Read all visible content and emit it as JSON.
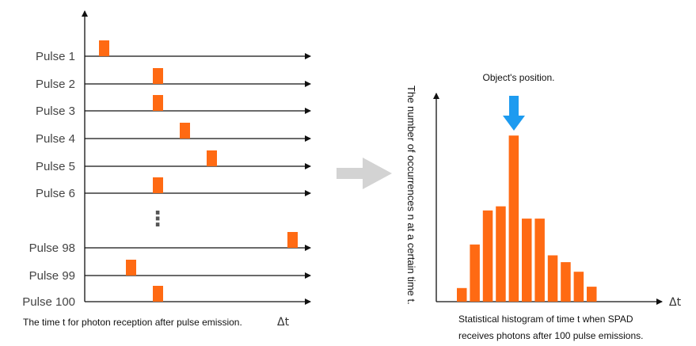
{
  "left_panel": {
    "pulses": [
      {
        "label": "Pulse 1",
        "delay": 1
      },
      {
        "label": "Pulse 2",
        "delay": 3
      },
      {
        "label": "Pulse 3",
        "delay": 3
      },
      {
        "label": "Pulse 4",
        "delay": 4
      },
      {
        "label": "Pulse 5",
        "delay": 5
      },
      {
        "label": "Pulse 6",
        "delay": 3
      },
      {
        "label": "Pulse 98",
        "delay": 8
      },
      {
        "label": "Pulse 99",
        "delay": 2
      },
      {
        "label": "Pulse 100",
        "delay": 3
      }
    ],
    "ellipsis": "⋮",
    "caption": "The time t for photon reception after pulse emission.",
    "x_axis_symbol": "Δt"
  },
  "right_panel": {
    "annotation": "Object's position.",
    "y_label": "The number of occurrences n at a certain time t.",
    "x_axis_symbol": "Δt",
    "caption_line1": "Statistical histogram of time t when SPAD",
    "caption_line2": "receives photons after 100 pulse emissions."
  },
  "chart_data": {
    "type": "bar",
    "values": [
      1,
      4.2,
      6.7,
      7.0,
      12.2,
      6.1,
      6.1,
      3.4,
      2.9,
      2.2,
      1.1
    ],
    "peak_index": 4
  },
  "colors": {
    "bar": "#ff6a13",
    "marker_arrow": "#1d9bf0",
    "flow_arrow": "#d3d3d3",
    "axis": "#111111"
  },
  "icons": {
    "flow_arrow": "right-arrow-icon",
    "position_marker": "down-arrow-icon"
  }
}
